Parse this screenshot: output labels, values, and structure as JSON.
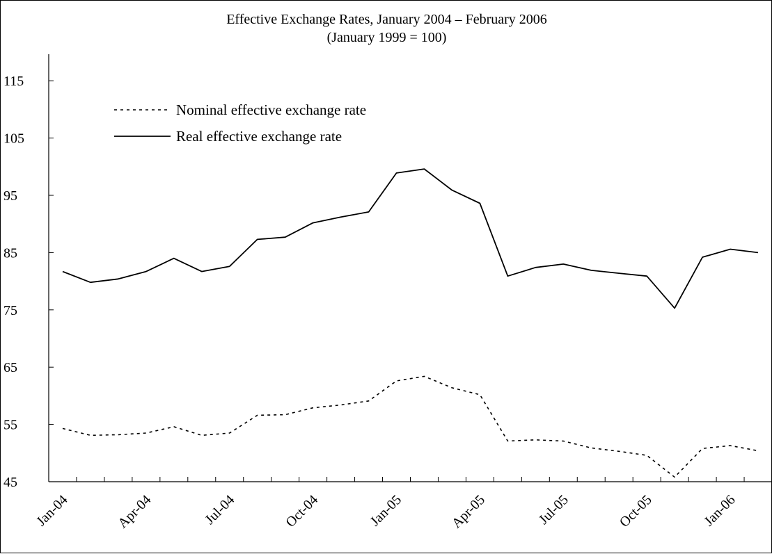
{
  "chart_data": {
    "type": "line",
    "title": "Effective Exchange Rates, January 2004 – February 2006",
    "subtitle": "(January 1999 = 100)",
    "xlabel": "",
    "ylabel": "",
    "ylim": [
      45,
      120
    ],
    "yticks": [
      45,
      55,
      65,
      75,
      85,
      95,
      105,
      115
    ],
    "x": [
      "Jan-04",
      "Feb-04",
      "Mar-04",
      "Apr-04",
      "May-04",
      "Jun-04",
      "Jul-04",
      "Aug-04",
      "Sep-04",
      "Oct-04",
      "Nov-04",
      "Dec-04",
      "Jan-05",
      "Feb-05",
      "Mar-05",
      "Apr-05",
      "May-05",
      "Jun-05",
      "Jul-05",
      "Aug-05",
      "Sep-05",
      "Oct-05",
      "Nov-05",
      "Dec-05",
      "Jan-06",
      "Feb-06"
    ],
    "xtick_labels": [
      "Jan-04",
      "Apr-04",
      "Jul-04",
      "Oct-04",
      "Jan-05",
      "Apr-05",
      "Jul-05",
      "Oct-05",
      "Jan-06"
    ],
    "legend_position": "top-left",
    "grid": false,
    "series": [
      {
        "name": "Nominal effective exchange rate",
        "style": "dotted",
        "color": "#000000",
        "values": [
          54.3,
          53.1,
          53.2,
          53.5,
          54.6,
          53.1,
          53.5,
          56.6,
          56.7,
          57.9,
          58.4,
          59.1,
          62.6,
          63.4,
          61.4,
          60.2,
          52.1,
          52.3,
          52.1,
          50.9,
          50.3,
          49.6,
          45.8,
          50.8,
          51.3,
          50.4
        ]
      },
      {
        "name": "Real effective exchange rate",
        "style": "solid",
        "color": "#000000",
        "values": [
          81.7,
          79.8,
          80.4,
          81.7,
          84.0,
          81.7,
          82.6,
          87.3,
          87.7,
          90.2,
          91.2,
          92.1,
          98.9,
          99.6,
          95.9,
          93.6,
          80.9,
          82.4,
          83.0,
          81.9,
          81.4,
          80.9,
          75.3,
          84.2,
          85.6,
          85.0
        ]
      }
    ]
  }
}
